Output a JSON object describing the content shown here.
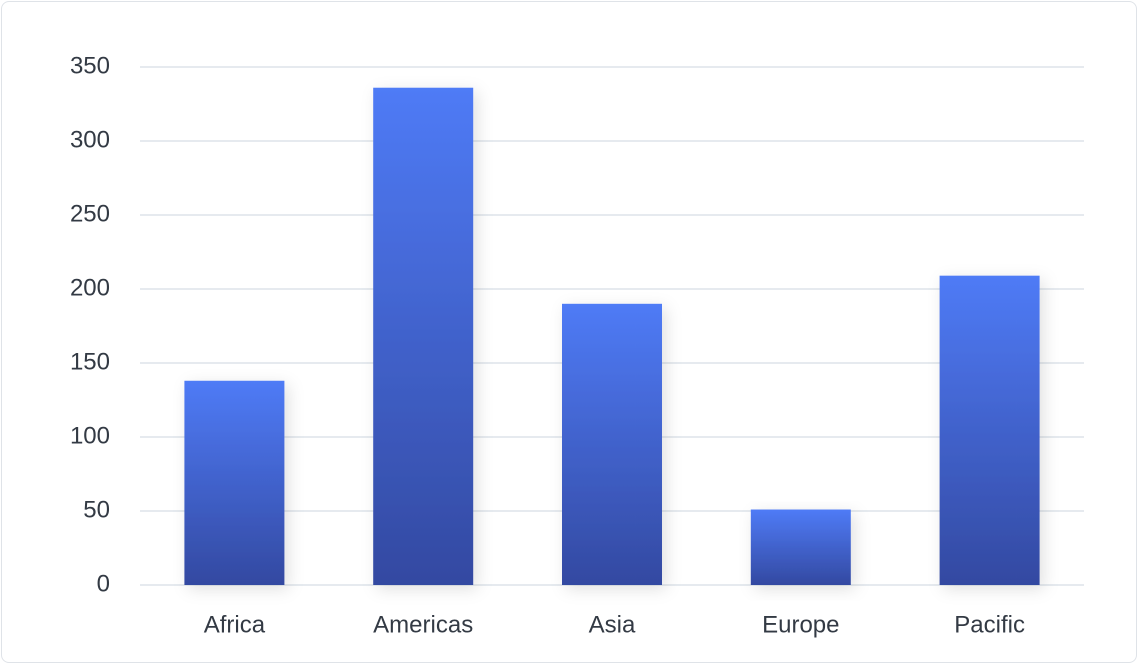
{
  "chart_data": {
    "type": "bar",
    "categories": [
      "Africa",
      "Americas",
      "Asia",
      "Europe",
      "Pacific"
    ],
    "values": [
      138,
      336,
      190,
      51,
      209
    ],
    "gradient": [
      "#4f7bf6",
      "#3349a1"
    ],
    "ylim": [
      0,
      350
    ],
    "yticks": [
      0,
      50,
      100,
      150,
      200,
      250,
      300,
      350
    ],
    "grid": true
  }
}
